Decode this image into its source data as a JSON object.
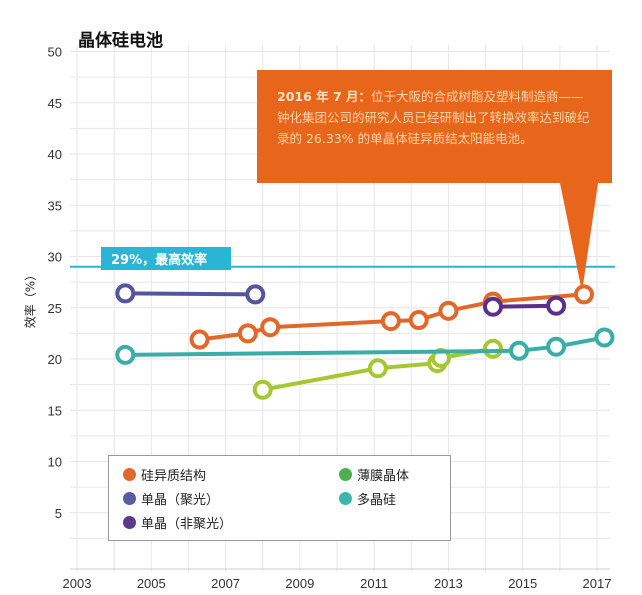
{
  "title": "晶体硅电池",
  "callout": {
    "lead": "2016 年 7 月：",
    "body": "位于大阪的合成树脂及塑料制造商——钟化集团公司的研究人员已经研制出了转换效率达到破纪录的 26.33% 的单晶体硅异质结太阳能电池。"
  },
  "chart_data": {
    "type": "line",
    "title": "晶体硅电池",
    "xlabel": "",
    "ylabel": "效率（%）",
    "xlim": [
      2003,
      2017
    ],
    "ylim": [
      0,
      50
    ],
    "xticks": [
      "2003",
      "2005",
      "2007",
      "2009",
      "2011",
      "2013",
      "2015",
      "2017"
    ],
    "yticks": [
      "5",
      "10",
      "15",
      "20",
      "25",
      "30",
      "35",
      "40",
      "45",
      "50"
    ],
    "grid": true,
    "legend_position": "bottom-left",
    "reference_line": {
      "value": 29,
      "label": "29%，最高效率",
      "color": "#29b6d6"
    },
    "series": [
      {
        "name": "硅异质结构",
        "color": "#e0682a",
        "legend_color": "#e0682a",
        "x": [
          2006.3,
          2007.6,
          2008.2,
          2011.45,
          2012.2,
          2013.0,
          2014.2,
          2016.65
        ],
        "y": [
          21.9,
          22.5,
          23.1,
          23.7,
          23.8,
          24.7,
          25.6,
          26.3
        ]
      },
      {
        "name": "单晶（聚光）",
        "color": "#55549e",
        "legend_color": "#5a5aa5",
        "x": [
          2004.3,
          2007.8
        ],
        "y": [
          26.4,
          26.3
        ]
      },
      {
        "name": "单晶（非聚光）",
        "color": "#5b2f8c",
        "legend_color": "#5b3a8e",
        "x": [
          2014.2,
          2015.9
        ],
        "y": [
          25.1,
          25.2
        ]
      },
      {
        "name": "薄膜晶体",
        "color": "#a5c832",
        "legend_color": "#4caf50",
        "x": [
          2008.0,
          2011.1,
          2012.7,
          2012.8,
          2014.2
        ],
        "y": [
          17.0,
          19.1,
          19.6,
          20.1,
          21.0
        ]
      },
      {
        "name": "多晶硅",
        "color": "#3aaea6",
        "legend_color": "#3db5aa",
        "x": [
          2004.3,
          2014.9,
          2015.9,
          2017.2
        ],
        "y": [
          20.4,
          20.8,
          21.2,
          22.1
        ]
      }
    ]
  }
}
